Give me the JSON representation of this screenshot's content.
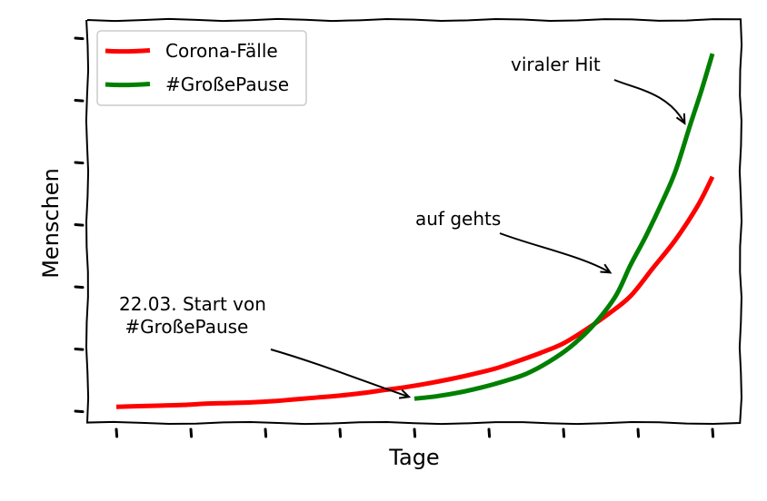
{
  "chart_data": {
    "type": "line",
    "title": "",
    "xlabel": "Tage",
    "ylabel": "Menschen",
    "xlim": [
      0,
      8.4
    ],
    "ylim": [
      -0.2,
      6.0
    ],
    "x_ticks": [
      0,
      1,
      2,
      3,
      4,
      5,
      6,
      7,
      8
    ],
    "y_ticks": [
      0,
      1,
      2,
      3,
      4,
      5,
      6
    ],
    "grid": false,
    "legend_position": "top-left",
    "series": [
      {
        "name": "Corona-Fälle",
        "color": "#ff0000",
        "x": [
          0,
          0.3,
          0.6,
          0.9,
          1.2,
          1.5,
          1.8,
          2.1,
          2.4,
          2.7,
          3.0,
          3.3,
          3.6,
          3.9,
          4.2,
          4.5,
          4.8,
          5.1,
          5.4,
          5.7,
          6.0,
          6.3,
          6.6,
          6.9,
          7.2,
          7.5,
          7.8,
          8.0
        ],
        "values": [
          0.07,
          0.08,
          0.09,
          0.1,
          0.12,
          0.13,
          0.14,
          0.16,
          0.19,
          0.22,
          0.25,
          0.29,
          0.34,
          0.39,
          0.45,
          0.52,
          0.6,
          0.69,
          0.81,
          0.94,
          1.09,
          1.31,
          1.56,
          1.85,
          2.3,
          2.75,
          3.3,
          3.77
        ]
      },
      {
        "name": "#GroßePause",
        "color": "#008000",
        "x": [
          4.0,
          4.3,
          4.6,
          4.9,
          5.2,
          5.5,
          5.8,
          6.1,
          6.4,
          6.7,
          6.9,
          7.1,
          7.3,
          7.5,
          7.7,
          7.85,
          8.0
        ],
        "values": [
          0.2,
          0.24,
          0.3,
          0.38,
          0.48,
          0.6,
          0.79,
          1.04,
          1.38,
          1.85,
          2.35,
          2.8,
          3.3,
          3.85,
          4.6,
          5.15,
          5.75
        ]
      }
    ],
    "annotations": [
      {
        "lines": [
          "viraler Hit"
        ],
        "point": [
          7.7,
          4.6
        ]
      },
      {
        "lines": [
          "auf gehts"
        ],
        "point": [
          6.7,
          2.2
        ]
      },
      {
        "lines": [
          "22.03. Start von",
          " #GroßePause"
        ],
        "point": [
          4.0,
          0.2
        ]
      }
    ]
  }
}
